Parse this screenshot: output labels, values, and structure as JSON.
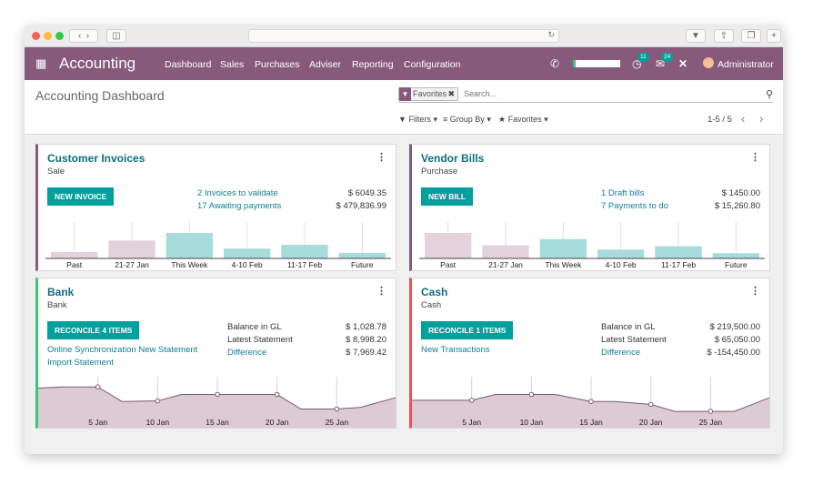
{
  "nav": {
    "app_name": "Accounting",
    "menu": [
      "Dashboard",
      "Sales",
      "Purchases",
      "Adviser",
      "Reporting",
      "Configuration"
    ],
    "messages_count": "11",
    "activities_count": "24",
    "user": "Administrator"
  },
  "control_panel": {
    "title": "Accounting Dashboard",
    "facet": "Favorites",
    "search_placeholder": "Search...",
    "filters": "Filters",
    "group_by": "Group By",
    "favorites": "Favorites",
    "pager": "1-5 / 5"
  },
  "cards": {
    "invoices": {
      "title": "Customer Invoices",
      "subtitle": "Sale",
      "button": "NEW INVOICE",
      "rows": [
        {
          "label": "2 Invoices to validate",
          "value": "$ 6049.35"
        },
        {
          "label": "17 Awaiting payments",
          "value": "$ 479,836.99"
        }
      ]
    },
    "bills": {
      "title": "Vendor Bills",
      "subtitle": "Purchase",
      "button": "NEW BILL",
      "rows": [
        {
          "label": "1 Draft bills",
          "value": "$ 1450.00"
        },
        {
          "label": "7 Payments to do",
          "value": "$ 15,260.80"
        }
      ]
    },
    "bank": {
      "title": "Bank",
      "subtitle": "Bank",
      "button": "RECONCILE 4 ITEMS",
      "links": [
        "Online Synchronization New Statement",
        "Import Statement"
      ],
      "stats": [
        {
          "label": "Balance in GL",
          "value": "$ 1,028.78"
        },
        {
          "label": "Latest Statement",
          "value": "$ 8,998.20"
        },
        {
          "label": "Difference",
          "value": "$ 7,969.42"
        }
      ]
    },
    "cash": {
      "title": "Cash",
      "subtitle": "Cash",
      "button": "RECONCILE 1 ITEMS",
      "links": [
        "New Transactions"
      ],
      "stats": [
        {
          "label": "Balance in GL",
          "value": "$ 219,500.00"
        },
        {
          "label": "Latest Statement",
          "value": "$ 65,050.00"
        },
        {
          "label": "Difference",
          "value": "$ -154,450.00"
        }
      ]
    }
  },
  "colors": {
    "brand": "#875a7b",
    "teal": "#00a09d",
    "link": "#0f7e93",
    "bar_muted": "#e2d2db",
    "bar_highlight": "#a6dcda",
    "area_fill": "#dccbd5",
    "border_purple": "#875a7b",
    "border_green": "#3ec678",
    "border_red": "#e45656"
  },
  "chart_data": [
    {
      "type": "bar",
      "categories": [
        "Past",
        "21-27 Jan",
        "This Week",
        "4-10 Feb",
        "11-17 Feb",
        "Future"
      ],
      "values": [
        1.5,
        4.2,
        6.0,
        2.3,
        3.2,
        1.3
      ],
      "highlight": [
        false,
        false,
        true,
        true,
        true,
        true
      ]
    },
    {
      "type": "bar",
      "categories": [
        "Past",
        "21-27 Jan",
        "This Week",
        "4-10 Feb",
        "11-17 Feb",
        "Future"
      ],
      "values": [
        5.8,
        3.0,
        4.4,
        2.0,
        2.8,
        1.2
      ],
      "highlight": [
        false,
        false,
        true,
        true,
        true,
        true
      ]
    },
    {
      "type": "area",
      "x_ticks": [
        "5 Jan",
        "10 Jan",
        "15 Jan",
        "20 Jan",
        "25 Jan"
      ],
      "x_range": [
        0,
        30
      ],
      "y_range": [
        0,
        100
      ],
      "x": [
        0,
        2,
        5,
        7,
        10,
        12,
        15,
        17,
        20,
        22,
        25,
        27,
        30
      ],
      "y": [
        68,
        70,
        70,
        45,
        46,
        57,
        57,
        57,
        57,
        32,
        32,
        35,
        52
      ],
      "markers": [
        5,
        10,
        15,
        20,
        25
      ]
    },
    {
      "type": "area",
      "x_ticks": [
        "5 Jan",
        "10 Jan",
        "15 Jan",
        "20 Jan",
        "25 Jan"
      ],
      "x_range": [
        0,
        30
      ],
      "y_range": [
        0,
        100
      ],
      "x": [
        0,
        2,
        5,
        7,
        10,
        12,
        15,
        17,
        20,
        22,
        25,
        27,
        30
      ],
      "y": [
        47,
        47,
        47,
        57,
        57,
        57,
        45,
        45,
        40,
        28,
        28,
        28,
        52
      ],
      "markers": [
        5,
        10,
        15,
        20,
        25
      ]
    }
  ]
}
